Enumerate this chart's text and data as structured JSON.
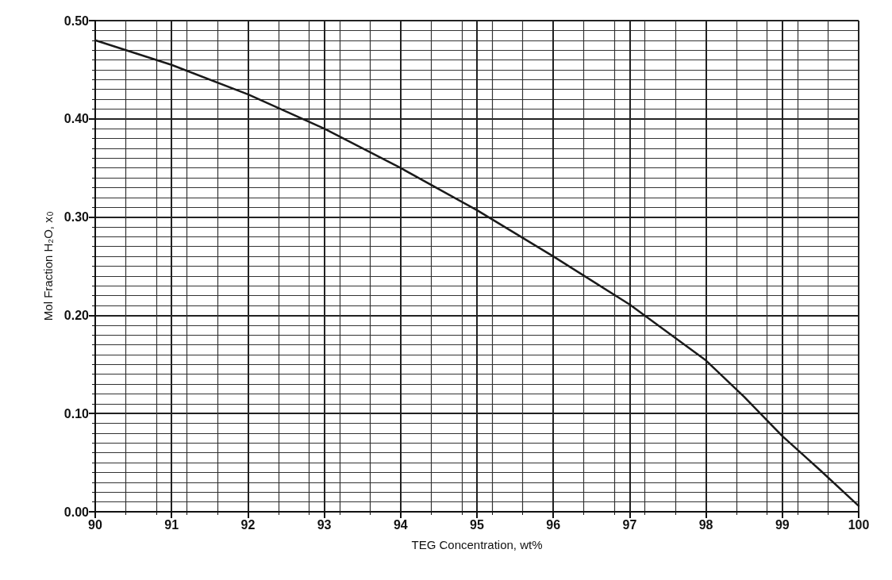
{
  "chart_data": {
    "type": "line",
    "xlabel": "TEG Concentration, wt%",
    "ylabel": "Mol Fraction H₂O, x$_{0}$",
    "x": [
      90,
      91,
      92,
      93,
      94,
      95,
      96,
      97,
      98,
      98.5,
      99,
      99.5,
      100
    ],
    "series": [
      {
        "color": "#1a1a1a",
        "values": [
          0.48,
          0.455,
          0.425,
          0.39,
          0.35,
          0.307,
          0.26,
          0.211,
          0.154,
          0.117,
          0.077,
          0.042,
          0.006
        ]
      }
    ],
    "xlim": [
      90,
      100
    ],
    "xticks": [
      90,
      91,
      92,
      93,
      94,
      95,
      96,
      97,
      98,
      99,
      100
    ],
    "ylim": [
      0,
      0.5
    ],
    "yticks": [
      {
        "value": 0,
        "label": "0.00"
      },
      {
        "value": 0.1,
        "label": "0.10"
      },
      {
        "value": 0.2,
        "label": "0.20"
      },
      {
        "value": 0.3,
        "label": "0.30"
      },
      {
        "value": 0.4,
        "label": "0.40"
      },
      {
        "value": 0.5,
        "label": "0.50"
      }
    ],
    "grid": true,
    "marker": "none",
    "line_style": "solid"
  }
}
